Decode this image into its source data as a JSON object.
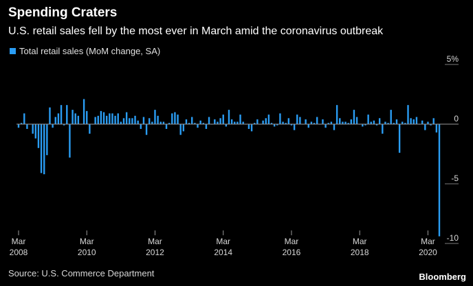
{
  "header": {
    "title": "Spending Craters",
    "subtitle": "U.S. retail sales fell by the most ever in March amid the coronavirus outbreak"
  },
  "footer": {
    "source": "Source: U.S. Commerce Department",
    "logo": "Bloomberg"
  },
  "colors": {
    "background": "#000000",
    "bar": "#2a9df4",
    "axis_text": "#d8d8d8",
    "zero_line": "#9a9a9a"
  },
  "chart_data": {
    "type": "bar",
    "legend": "Total retail sales (MoM change, SA)",
    "legend_position": "top-left",
    "ylim": [
      -10,
      5
    ],
    "y_ticks": [
      {
        "value": 5,
        "label": "5%"
      },
      {
        "value": 0,
        "label": "0"
      },
      {
        "value": -5,
        "label": "-5"
      },
      {
        "value": -10,
        "label": "-10"
      }
    ],
    "x_ticks": [
      {
        "index": 0,
        "month": "Mar",
        "year": "2008"
      },
      {
        "index": 24,
        "month": "Mar",
        "year": "2010"
      },
      {
        "index": 48,
        "month": "Mar",
        "year": "2012"
      },
      {
        "index": 72,
        "month": "Mar",
        "year": "2014"
      },
      {
        "index": 96,
        "month": "Mar",
        "year": "2016"
      },
      {
        "index": 120,
        "month": "Mar",
        "year": "2018"
      },
      {
        "index": 144,
        "month": "Mar",
        "year": "2020"
      }
    ],
    "start": "Mar 2008",
    "end": "Mar 2020",
    "grid": false,
    "values": [
      -0.3,
      0.1,
      0.9,
      -0.4,
      0.0,
      -0.8,
      -1.2,
      -2.0,
      -4.1,
      -4.2,
      -2.6,
      1.4,
      -0.3,
      0.6,
      0.9,
      1.6,
      -0.1,
      1.6,
      -2.8,
      1.2,
      0.9,
      0.7,
      0.0,
      2.1,
      1.1,
      -0.8,
      0.0,
      0.6,
      0.7,
      1.1,
      1.0,
      0.7,
      0.9,
      0.9,
      0.7,
      0.9,
      0.2,
      0.5,
      1.0,
      0.5,
      0.5,
      0.7,
      0.3,
      -0.4,
      0.6,
      -0.9,
      0.5,
      0.2,
      1.2,
      0.7,
      0.2,
      0.2,
      -0.4,
      0.1,
      0.9,
      1.0,
      0.8,
      -0.9,
      -0.6,
      0.4,
      0.1,
      0.6,
      0.1,
      -0.3,
      0.3,
      0.1,
      -0.4,
      0.6,
      0.0,
      0.4,
      0.2,
      0.5,
      0.8,
      -0.2,
      1.2,
      0.4,
      0.2,
      0.2,
      0.8,
      0.2,
      0.0,
      -0.4,
      -0.6,
      0.1,
      0.4,
      0.0,
      0.3,
      0.5,
      0.8,
      0.1,
      -0.2,
      -0.1,
      0.9,
      0.2,
      0.1,
      0.5,
      -0.1,
      -0.5,
      0.8,
      0.6,
      0.0,
      0.4,
      -0.3,
      0.2,
      0.1,
      0.6,
      0.0,
      0.4,
      -0.3,
      0.1,
      0.2,
      -0.5,
      1.6,
      0.5,
      0.2,
      0.2,
      0.1,
      0.4,
      1.2,
      0.6,
      0.0,
      -0.2,
      -0.1,
      0.8,
      0.2,
      0.3,
      -0.1,
      0.5,
      -0.8,
      0.2,
      0.1,
      1.2,
      0.1,
      0.4,
      -2.4,
      0.2,
      0.1,
      1.6,
      0.5,
      0.4,
      0.6,
      0.0,
      0.3,
      -0.5,
      0.2,
      -0.1,
      0.5,
      -0.7,
      -9.4
    ]
  }
}
